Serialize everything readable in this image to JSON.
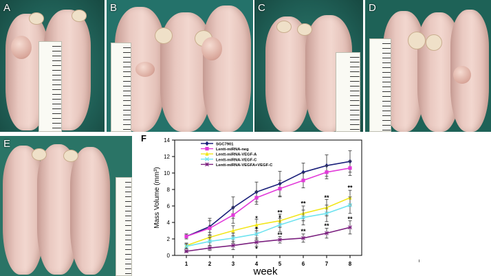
{
  "panels": {
    "a": "A",
    "b": "B",
    "c": "C",
    "d": "D",
    "e": "E",
    "f": "F"
  },
  "chart_data": {
    "type": "line",
    "title": "",
    "xlabel": "week",
    "ylabel": "Mass Volume (mm³)",
    "x": [
      1,
      2,
      3,
      4,
      5,
      6,
      7,
      8
    ],
    "xlim": [
      0.5,
      8.5
    ],
    "ylim": [
      0,
      14
    ],
    "yticks": [
      0,
      2,
      4,
      6,
      8,
      10,
      12,
      14
    ],
    "grid": false,
    "legend_position": "top-left",
    "series": [
      {
        "name": "SGC7901",
        "color": "#1a1f7a",
        "marker": "diamond",
        "values": [
          2.3,
          3.5,
          5.8,
          7.7,
          8.7,
          10.1,
          10.9,
          11.4
        ],
        "errors": [
          0.3,
          1.0,
          1.3,
          1.2,
          1.5,
          1.1,
          1.3,
          1.3
        ]
      },
      {
        "name": "Lentt-miRNA-neg",
        "color": "#e23ad9",
        "marker": "square",
        "values": [
          2.3,
          3.3,
          4.9,
          7.0,
          8.1,
          9.1,
          10.1,
          10.6
        ],
        "errors": [
          0.3,
          0.9,
          1.0,
          0.8,
          1.0,
          0.9,
          0.8,
          0.9
        ]
      },
      {
        "name": "Lentt-miRNA-VEGF-A",
        "color": "#f2e61a",
        "marker": "triangle",
        "values": [
          1.2,
          2.2,
          3.0,
          3.7,
          4.2,
          5.1,
          5.8,
          7.0
        ],
        "errors": [
          0.3,
          0.6,
          0.6,
          0.7,
          0.8,
          0.9,
          1.0,
          0.9
        ]
      },
      {
        "name": "Lentt-miRNA-VEGF-C",
        "color": "#6fe3ef",
        "marker": "cross",
        "values": [
          1.1,
          1.7,
          2.1,
          2.6,
          3.7,
          4.6,
          5.1,
          6.1
        ],
        "errors": [
          0.3,
          0.5,
          0.6,
          0.7,
          0.8,
          0.9,
          1.0,
          1.0
        ]
      },
      {
        "name": "Lentt-miRNA-VEGFA+VEGF-C",
        "color": "#7a1f7e",
        "marker": "star",
        "values": [
          0.5,
          0.9,
          1.2,
          1.6,
          1.9,
          2.1,
          2.7,
          3.4
        ],
        "errors": [
          0.1,
          0.3,
          0.5,
          0.5,
          0.4,
          0.5,
          0.6,
          0.8
        ]
      }
    ],
    "annotations": [
      {
        "x": 4,
        "y": 4.5,
        "text": "*"
      },
      {
        "x": 4,
        "y": 3.2,
        "text": "*"
      },
      {
        "x": 4,
        "y": 0.8,
        "text": "*"
      },
      {
        "x": 5,
        "y": 5.2,
        "text": "**"
      },
      {
        "x": 5,
        "y": 4.6,
        "text": "*"
      },
      {
        "x": 5,
        "y": 2.5,
        "text": "**"
      },
      {
        "x": 6,
        "y": 6.3,
        "text": "**"
      },
      {
        "x": 6,
        "y": 2.9,
        "text": "**"
      },
      {
        "x": 7,
        "y": 7.0,
        "text": "**"
      },
      {
        "x": 7,
        "y": 3.6,
        "text": "**"
      },
      {
        "x": 8,
        "y": 8.2,
        "text": "**"
      },
      {
        "x": 8,
        "y": 4.4,
        "text": "**"
      }
    ]
  }
}
